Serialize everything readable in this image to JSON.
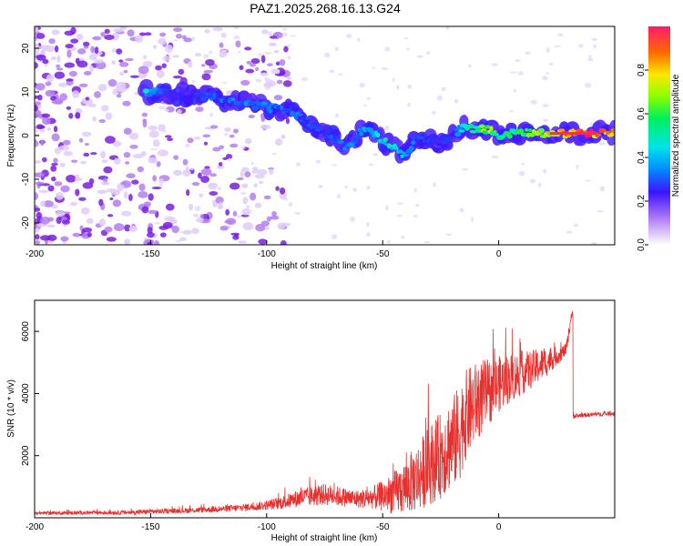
{
  "title": "PAZ1.2025.268.16.13.G24",
  "colors": {
    "snr_line": "#e8312f",
    "frame": "#000000",
    "blob_purple": "#7a1fe0",
    "blob_light": "#c9a6f3"
  },
  "chart_data": [
    {
      "type": "heatmap",
      "name": "spectrogram",
      "xlabel": "Height of straight line (km)",
      "ylabel": "Frequency (Hz)",
      "xlim": [
        -200,
        50
      ],
      "ylim": [
        -25,
        25
      ],
      "xticks": [
        -200,
        -150,
        -100,
        -50,
        0
      ],
      "yticks": [
        -20,
        -10,
        0,
        10,
        20
      ],
      "colorbar": {
        "label": "Normalized spectral amplitude",
        "range": [
          0,
          1
        ],
        "ticks": [
          0.0,
          0.2,
          0.4,
          0.6,
          0.8
        ],
        "tick_labels": [
          "0.0",
          "0.2",
          "0.4",
          "0.6",
          "0.8"
        ],
        "colormap": "rainbow"
      },
      "ridge": {
        "height_km": [
          -152,
          -145,
          -135,
          -125,
          -115,
          -105,
          -95,
          -85,
          -75,
          -65,
          -58,
          -50,
          -45,
          -40,
          -35,
          -30,
          -25,
          -20,
          -15,
          -10,
          -5,
          0,
          5,
          10,
          20,
          30,
          40,
          50
        ],
        "freq_hz": [
          10,
          10,
          9.5,
          9,
          8,
          7,
          6,
          4,
          1,
          -3,
          2,
          -1,
          -3,
          -5,
          0,
          -1,
          -2,
          0,
          2,
          1.5,
          1.5,
          0,
          0.5,
          0.8,
          0.5,
          0.5,
          0.5,
          0.5
        ],
        "amplitude": [
          0.45,
          0.3,
          0.25,
          0.3,
          0.35,
          0.35,
          0.35,
          0.35,
          0.3,
          0.35,
          0.4,
          0.5,
          0.5,
          0.4,
          0.3,
          0.3,
          0.25,
          0.3,
          0.5,
          0.6,
          0.8,
          0.55,
          0.6,
          0.6,
          0.8,
          1.0,
          1.0,
          0.9
        ]
      }
    },
    {
      "type": "line",
      "name": "snr",
      "xlabel": "Height of straight line (km)",
      "ylabel": "SNR (10 * v/v)",
      "xlim": [
        -200,
        50
      ],
      "ylim": [
        0,
        7000
      ],
      "xticks": [
        -200,
        -150,
        -100,
        -50,
        0
      ],
      "yticks": [
        2000,
        4000,
        6000
      ],
      "series": [
        {
          "name": "SNR",
          "x": [
            -200,
            -180,
            -160,
            -150,
            -140,
            -130,
            -120,
            -110,
            -100,
            -95,
            -90,
            -85,
            -80,
            -75,
            -70,
            -65,
            -60,
            -55,
            -50,
            -45,
            -40,
            -35,
            -30,
            -25,
            -22,
            -20,
            -17,
            -15,
            -12,
            -10,
            -7,
            -5,
            -3,
            0,
            5,
            10,
            15,
            20,
            25,
            29,
            31,
            33,
            35,
            40,
            45,
            50
          ],
          "y": [
            150,
            160,
            170,
            200,
            220,
            250,
            280,
            330,
            400,
            470,
            550,
            650,
            700,
            750,
            700,
            650,
            600,
            650,
            700,
            800,
            1000,
            1300,
            1700,
            2000,
            2300,
            2400,
            2700,
            3200,
            3500,
            3700,
            3900,
            4000,
            4100,
            4300,
            4500,
            4650,
            4800,
            5000,
            5200,
            5400,
            6300,
            3250,
            3300,
            3320,
            3340,
            3360
          ],
          "spread": [
            50,
            60,
            70,
            80,
            80,
            90,
            100,
            120,
            150,
            200,
            250,
            300,
            330,
            350,
            330,
            300,
            300,
            350,
            500,
            700,
            900,
            1100,
            1300,
            1400,
            1500,
            1500,
            1600,
            1500,
            1400,
            1300,
            1200,
            1100,
            1000,
            900,
            800,
            700,
            600,
            500,
            300,
            200,
            200,
            80,
            70,
            70,
            70,
            70
          ]
        }
      ]
    }
  ]
}
